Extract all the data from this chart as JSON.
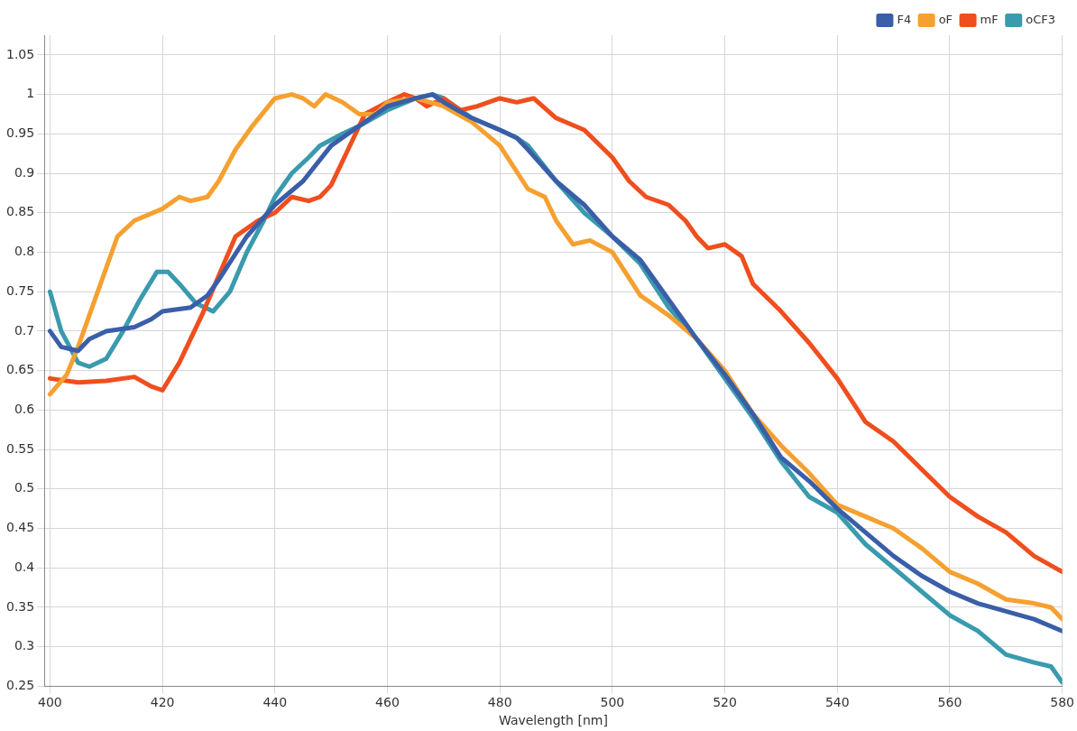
{
  "chart_data": {
    "type": "line",
    "xlabel": "Wavelength [nm]",
    "xlim": [
      399,
      580
    ],
    "xticks": [
      400,
      420,
      440,
      460,
      480,
      500,
      520,
      540,
      560,
      580
    ],
    "ylim": [
      0.25,
      1.075
    ],
    "yticks": [
      0.25,
      0.3,
      0.35,
      0.4,
      0.45,
      0.5,
      0.55,
      0.6,
      0.65,
      0.7,
      0.75,
      0.8,
      0.85,
      0.9,
      0.95,
      1,
      1.05
    ],
    "grid": true,
    "legend": "top right",
    "marker": "none",
    "line_style": "solid",
    "series": [
      {
        "name": "F4",
        "color": "#3a5ea8",
        "x": [
          400,
          402,
          405,
          407,
          410,
          415,
          418,
          420,
          425,
          428,
          430,
          435,
          440,
          445,
          450,
          455,
          460,
          465,
          468,
          470,
          475,
          480,
          483,
          485,
          490,
          495,
          500,
          505,
          510,
          515,
          520,
          525,
          530,
          535,
          540,
          545,
          550,
          555,
          560,
          565,
          570,
          575,
          580
        ],
        "values": [
          0.7,
          0.68,
          0.675,
          0.69,
          0.7,
          0.705,
          0.715,
          0.725,
          0.73,
          0.745,
          0.765,
          0.82,
          0.86,
          0.89,
          0.935,
          0.96,
          0.985,
          0.995,
          1.0,
          0.99,
          0.97,
          0.955,
          0.945,
          0.93,
          0.89,
          0.86,
          0.82,
          0.79,
          0.74,
          0.69,
          0.645,
          0.595,
          0.54,
          0.51,
          0.475,
          0.445,
          0.415,
          0.39,
          0.37,
          0.355,
          0.345,
          0.335,
          0.32
        ]
      },
      {
        "name": "oF",
        "color": "#f5a030",
        "x": [
          400,
          403,
          405,
          408,
          410,
          412,
          415,
          420,
          423,
          425,
          428,
          430,
          433,
          436,
          440,
          443,
          445,
          447,
          449,
          452,
          455,
          458,
          460,
          465,
          470,
          475,
          480,
          485,
          488,
          490,
          493,
          496,
          500,
          505,
          510,
          515,
          520,
          525,
          530,
          535,
          540,
          545,
          550,
          555,
          560,
          565,
          570,
          575,
          578,
          580
        ],
        "values": [
          0.62,
          0.645,
          0.68,
          0.74,
          0.78,
          0.82,
          0.84,
          0.855,
          0.87,
          0.865,
          0.87,
          0.89,
          0.93,
          0.96,
          0.995,
          1.0,
          0.995,
          0.985,
          1.0,
          0.99,
          0.975,
          0.975,
          0.99,
          0.995,
          0.985,
          0.965,
          0.935,
          0.88,
          0.87,
          0.84,
          0.81,
          0.815,
          0.8,
          0.745,
          0.72,
          0.69,
          0.65,
          0.595,
          0.555,
          0.52,
          0.48,
          0.465,
          0.45,
          0.425,
          0.395,
          0.38,
          0.36,
          0.355,
          0.35,
          0.335
        ]
      },
      {
        "name": "mF",
        "color": "#f04e1e",
        "x": [
          400,
          405,
          410,
          415,
          418,
          420,
          423,
          427,
          430,
          433,
          437,
          440,
          443,
          446,
          448,
          450,
          453,
          456,
          460,
          463,
          465,
          467,
          470,
          473,
          476,
          480,
          483,
          486,
          490,
          495,
          500,
          503,
          506,
          510,
          513,
          515,
          517,
          520,
          523,
          525,
          530,
          535,
          540,
          545,
          550,
          555,
          560,
          565,
          570,
          575,
          580
        ],
        "values": [
          0.64,
          0.635,
          0.637,
          0.642,
          0.63,
          0.625,
          0.66,
          0.72,
          0.77,
          0.82,
          0.84,
          0.85,
          0.87,
          0.865,
          0.87,
          0.885,
          0.93,
          0.975,
          0.99,
          1.0,
          0.995,
          0.985,
          0.995,
          0.98,
          0.985,
          0.995,
          0.99,
          0.995,
          0.97,
          0.955,
          0.92,
          0.89,
          0.87,
          0.86,
          0.84,
          0.82,
          0.805,
          0.81,
          0.795,
          0.76,
          0.725,
          0.685,
          0.64,
          0.585,
          0.56,
          0.525,
          0.49,
          0.465,
          0.445,
          0.415,
          0.395
        ]
      },
      {
        "name": "oCF3",
        "color": "#3a9aae",
        "x": [
          400,
          402,
          405,
          407,
          410,
          413,
          416,
          419,
          421,
          423,
          426,
          429,
          432,
          435,
          438,
          440,
          443,
          446,
          448,
          452,
          455,
          460,
          465,
          468,
          470,
          475,
          480,
          483,
          485,
          490,
          495,
          500,
          505,
          510,
          515,
          520,
          525,
          530,
          535,
          540,
          545,
          550,
          555,
          560,
          565,
          570,
          575,
          578,
          580
        ],
        "values": [
          0.75,
          0.7,
          0.66,
          0.655,
          0.665,
          0.7,
          0.74,
          0.775,
          0.775,
          0.76,
          0.735,
          0.725,
          0.75,
          0.8,
          0.84,
          0.87,
          0.9,
          0.92,
          0.935,
          0.95,
          0.96,
          0.98,
          0.995,
          1.0,
          0.995,
          0.97,
          0.955,
          0.945,
          0.935,
          0.89,
          0.85,
          0.82,
          0.785,
          0.73,
          0.69,
          0.64,
          0.59,
          0.535,
          0.49,
          0.47,
          0.43,
          0.4,
          0.37,
          0.34,
          0.32,
          0.29,
          0.28,
          0.275,
          0.255
        ]
      }
    ]
  }
}
